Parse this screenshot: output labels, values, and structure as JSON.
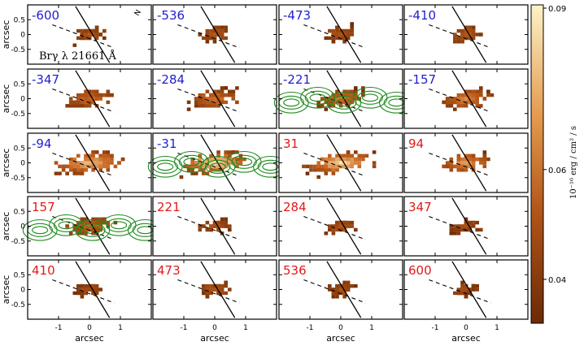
{
  "chart_data": {
    "type": "heatmap",
    "description_kind": "channel-map",
    "line_label": "Brγ λ 21661 Å",
    "compass": "N",
    "panels": [
      {
        "velocity": "-600",
        "color": "blue",
        "intensity": 0.25,
        "shape": "compact",
        "contours": false
      },
      {
        "velocity": "-536",
        "color": "blue",
        "intensity": 0.3,
        "shape": "compact",
        "contours": false
      },
      {
        "velocity": "-473",
        "color": "blue",
        "intensity": 0.3,
        "shape": "compact",
        "contours": false
      },
      {
        "velocity": "-410",
        "color": "blue",
        "intensity": 0.35,
        "shape": "compact",
        "contours": false
      },
      {
        "velocity": "-347",
        "color": "blue",
        "intensity": 0.45,
        "shape": "extended",
        "contours": false
      },
      {
        "velocity": "-284",
        "color": "blue",
        "intensity": 0.5,
        "shape": "extended",
        "contours": false
      },
      {
        "velocity": "-221",
        "color": "blue",
        "intensity": 0.55,
        "shape": "extended",
        "contours": true
      },
      {
        "velocity": "-157",
        "color": "blue",
        "intensity": 0.6,
        "shape": "extended",
        "contours": false
      },
      {
        "velocity": "-94",
        "color": "blue",
        "intensity": 0.8,
        "shape": "wide",
        "contours": false
      },
      {
        "velocity": "-31",
        "color": "blue",
        "intensity": 0.95,
        "shape": "wide",
        "contours": true
      },
      {
        "velocity": "31",
        "color": "red",
        "intensity": 0.9,
        "shape": "wide",
        "contours": false
      },
      {
        "velocity": "94",
        "color": "red",
        "intensity": 0.7,
        "shape": "extended",
        "contours": false
      },
      {
        "velocity": "157",
        "color": "red",
        "intensity": 0.45,
        "shape": "extended",
        "contours": true
      },
      {
        "velocity": "221",
        "color": "red",
        "intensity": 0.3,
        "shape": "compact",
        "contours": false
      },
      {
        "velocity": "284",
        "color": "red",
        "intensity": 0.3,
        "shape": "compact",
        "contours": false
      },
      {
        "velocity": "347",
        "color": "red",
        "intensity": 0.25,
        "shape": "compact",
        "contours": false
      },
      {
        "velocity": "410",
        "color": "red",
        "intensity": 0.25,
        "shape": "compact",
        "contours": false
      },
      {
        "velocity": "473",
        "color": "red",
        "intensity": 0.25,
        "shape": "compact",
        "contours": false
      },
      {
        "velocity": "536",
        "color": "red",
        "intensity": 0.22,
        "shape": "compact",
        "contours": false
      },
      {
        "velocity": "600",
        "color": "red",
        "intensity": 0.18,
        "shape": "compact",
        "contours": false
      }
    ],
    "rows": 5,
    "cols": 4,
    "xlabel": "arcsec",
    "ylabel": "arcsec",
    "xlim": [
      -2,
      2
    ],
    "ylim": [
      -1,
      1
    ],
    "xticks": [
      "-1",
      "0",
      "1"
    ],
    "yticks": [
      "0.5",
      "0",
      "-0.5"
    ],
    "colorbar": {
      "label": "10⁻¹⁶ erg / cm² / s",
      "ticks": [
        "0.09",
        "0.06",
        "0.04"
      ],
      "tick_values": [
        0.09,
        0.06,
        0.04
      ],
      "range": [
        0.032,
        0.09
      ],
      "colormap": "copper-to-cream"
    },
    "colors": {
      "blue_label": "#1f1fd0",
      "red_label": "#e01a1a",
      "contour": "#1f8a1f",
      "dark": "#6b2a05",
      "mid": "#c8641e",
      "light": "#fbe4ad"
    }
  }
}
